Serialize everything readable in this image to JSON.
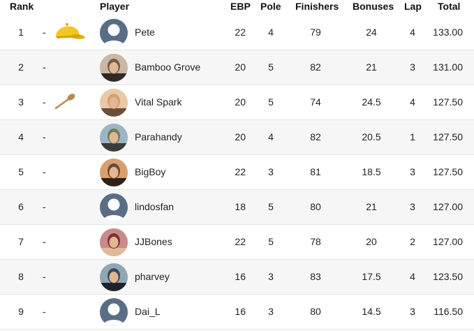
{
  "header": {
    "rank": "Rank",
    "player": "Player",
    "ebp": "EBP",
    "pole": "Pole",
    "finishers": "Finishers",
    "bonuses": "Bonuses",
    "lap": "Lap",
    "total": "Total"
  },
  "rows": [
    {
      "rank": "1",
      "dash": "-",
      "badge": "yellow-cap-icon",
      "avatar": "default-avatar",
      "player": "Pete",
      "ebp": "22",
      "pole": "4",
      "finishers": "79",
      "bonuses": "24",
      "lap": "4",
      "total": "133.00"
    },
    {
      "rank": "2",
      "dash": "-",
      "badge": "",
      "avatar": "photo-avatar",
      "player": "Bamboo Grove",
      "ebp": "20",
      "pole": "5",
      "finishers": "82",
      "bonuses": "21",
      "lap": "3",
      "total": "131.00"
    },
    {
      "rank": "3",
      "dash": "-",
      "badge": "wooden-spoon-icon",
      "avatar": "photo-avatar",
      "player": "Vital Spark",
      "ebp": "20",
      "pole": "5",
      "finishers": "74",
      "bonuses": "24.5",
      "lap": "4",
      "total": "127.50"
    },
    {
      "rank": "4",
      "dash": "-",
      "badge": "",
      "avatar": "photo-avatar",
      "player": "Parahandy",
      "ebp": "20",
      "pole": "4",
      "finishers": "82",
      "bonuses": "20.5",
      "lap": "1",
      "total": "127.50"
    },
    {
      "rank": "5",
      "dash": "-",
      "badge": "",
      "avatar": "photo-avatar",
      "player": "BigBoy",
      "ebp": "22",
      "pole": "3",
      "finishers": "81",
      "bonuses": "18.5",
      "lap": "3",
      "total": "127.50"
    },
    {
      "rank": "6",
      "dash": "-",
      "badge": "",
      "avatar": "default-avatar",
      "player": "lindosfan",
      "ebp": "18",
      "pole": "5",
      "finishers": "80",
      "bonuses": "21",
      "lap": "3",
      "total": "127.00"
    },
    {
      "rank": "7",
      "dash": "-",
      "badge": "",
      "avatar": "photo-avatar",
      "player": "JJBones",
      "ebp": "22",
      "pole": "5",
      "finishers": "78",
      "bonuses": "20",
      "lap": "2",
      "total": "127.00"
    },
    {
      "rank": "8",
      "dash": "-",
      "badge": "",
      "avatar": "photo-avatar",
      "player": "pharvey",
      "ebp": "16",
      "pole": "3",
      "finishers": "83",
      "bonuses": "17.5",
      "lap": "4",
      "total": "123.50"
    },
    {
      "rank": "9",
      "dash": "-",
      "badge": "",
      "avatar": "default-avatar",
      "player": "Dai_L",
      "ebp": "16",
      "pole": "3",
      "finishers": "80",
      "bonuses": "14.5",
      "lap": "3",
      "total": "116.50"
    }
  ],
  "colors": {
    "avatar_default_bg": "#5a6d86",
    "cap": "#f3c623",
    "spoon": "#b58a4c"
  }
}
